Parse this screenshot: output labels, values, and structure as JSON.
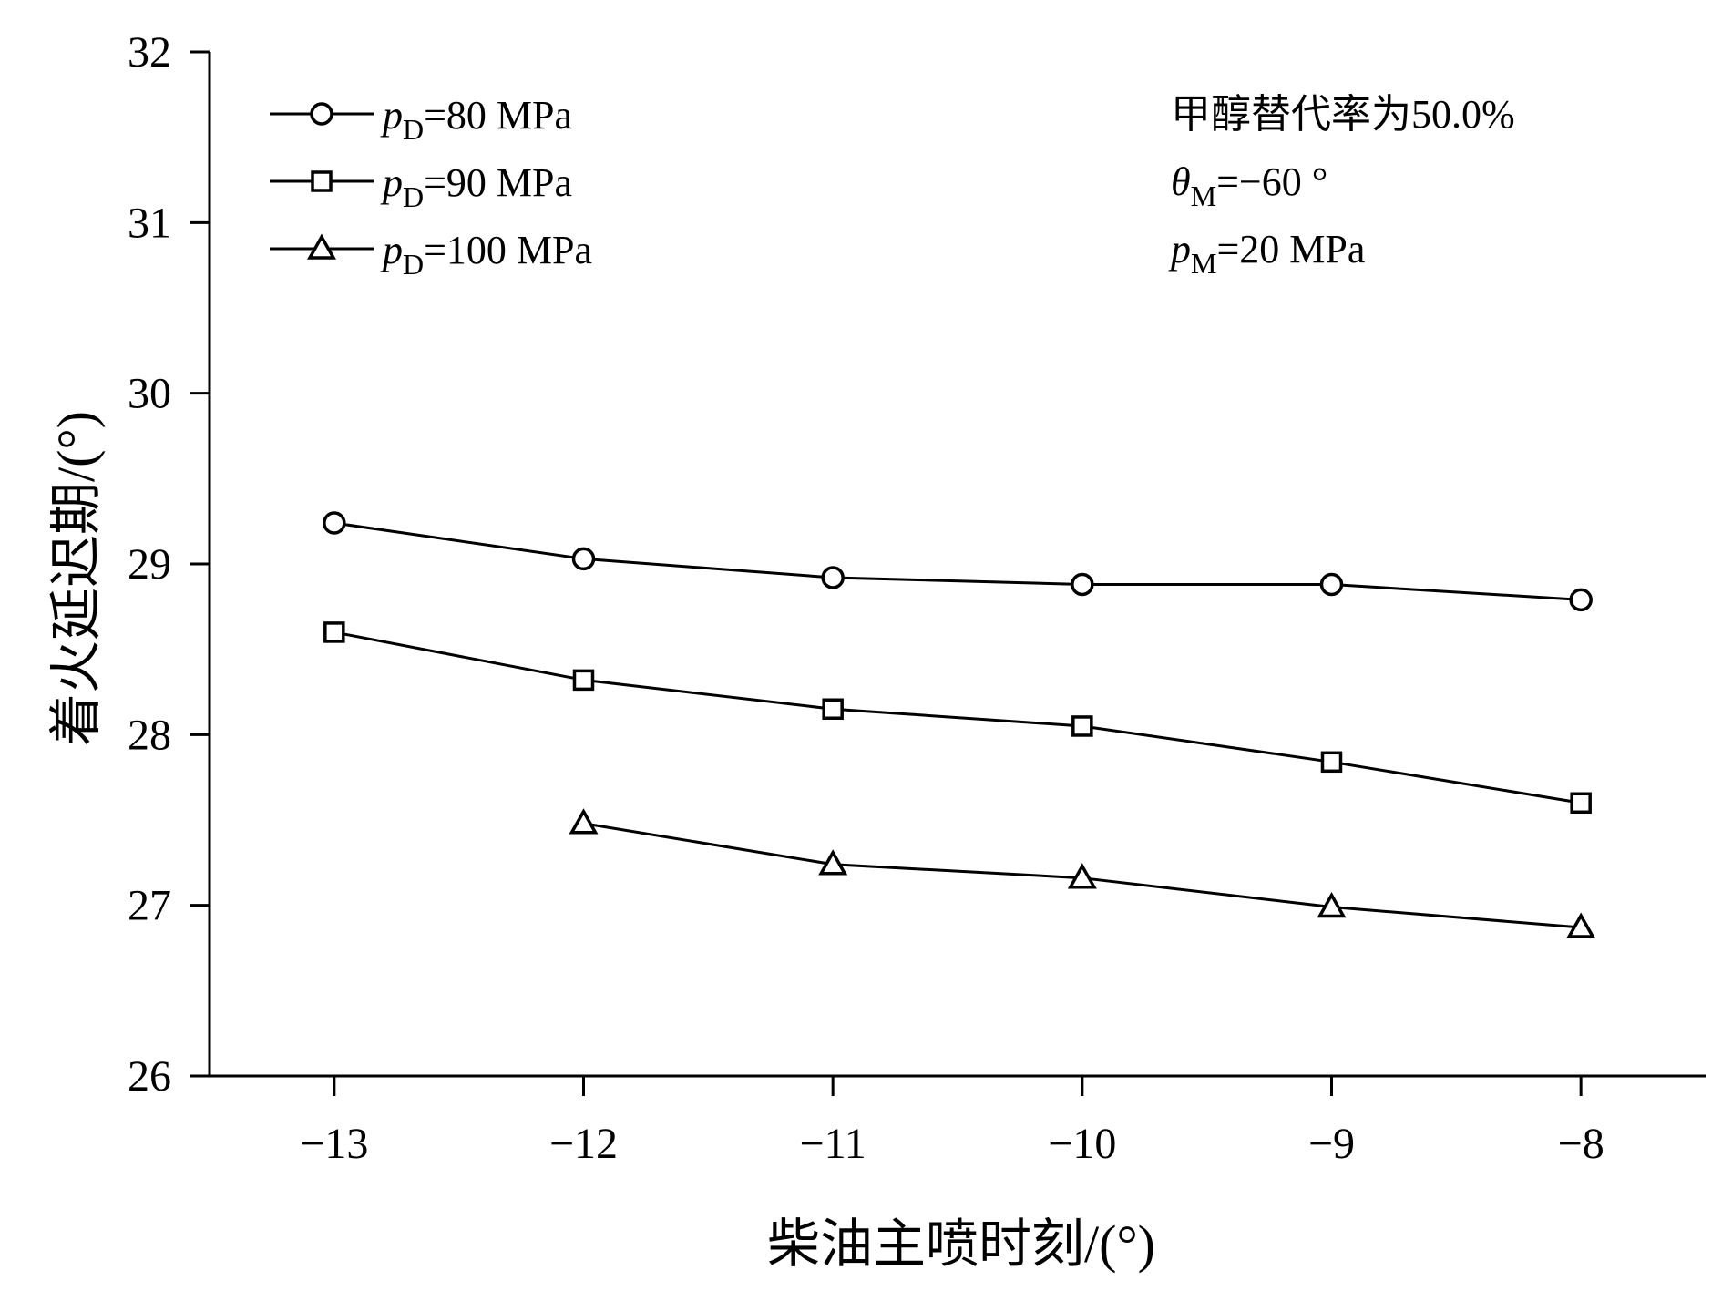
{
  "chart_data": {
    "type": "line",
    "title": "",
    "xlabel": "柴油主喷时刻/(°)",
    "ylabel": "着火延迟期/(°)",
    "xlim": [
      -13.5,
      -7.5
    ],
    "ylim": [
      26,
      32
    ],
    "grid": false,
    "legend_position": "top-left",
    "x_ticks": [
      -13,
      -12,
      -11,
      -10,
      -9,
      -8
    ],
    "x_tick_labels": [
      "−13",
      "−12",
      "−11",
      "−10",
      "−9",
      "−8"
    ],
    "y_ticks": [
      26,
      27,
      28,
      29,
      30,
      31,
      32
    ],
    "y_tick_labels": [
      "26",
      "27",
      "28",
      "29",
      "30",
      "31",
      "32"
    ],
    "series": [
      {
        "name": "pD=80 MPa",
        "symbol": "p",
        "subscript": "D",
        "value_text": "=80 MPa",
        "marker": "circle",
        "x": [
          -13,
          -12,
          -11,
          -10,
          -9,
          -8
        ],
        "values": [
          29.24,
          29.03,
          28.92,
          28.88,
          28.88,
          28.79
        ]
      },
      {
        "name": "pD=90 MPa",
        "symbol": "p",
        "subscript": "D",
        "value_text": "=90 MPa",
        "marker": "square",
        "x": [
          -13,
          -12,
          -11,
          -10,
          -9,
          -8
        ],
        "values": [
          28.6,
          28.32,
          28.15,
          28.05,
          27.84,
          27.6
        ]
      },
      {
        "name": "pD=100 MPa",
        "symbol": "p",
        "subscript": "D",
        "value_text": "=100 MPa",
        "marker": "triangle",
        "x": [
          -12,
          -11,
          -10,
          -9,
          -8
        ],
        "values": [
          27.48,
          27.24,
          27.16,
          26.99,
          26.87
        ]
      }
    ],
    "annotations": [
      {
        "main": "甲醇替代率为50.0%",
        "symbol": "",
        "subscript": "",
        "rest": ""
      },
      {
        "main": "",
        "symbol": "θ",
        "subscript": "M",
        "rest": "=−60 °"
      },
      {
        "main": "",
        "symbol": "p",
        "subscript": "M",
        "rest": "=20 MPa"
      }
    ]
  }
}
